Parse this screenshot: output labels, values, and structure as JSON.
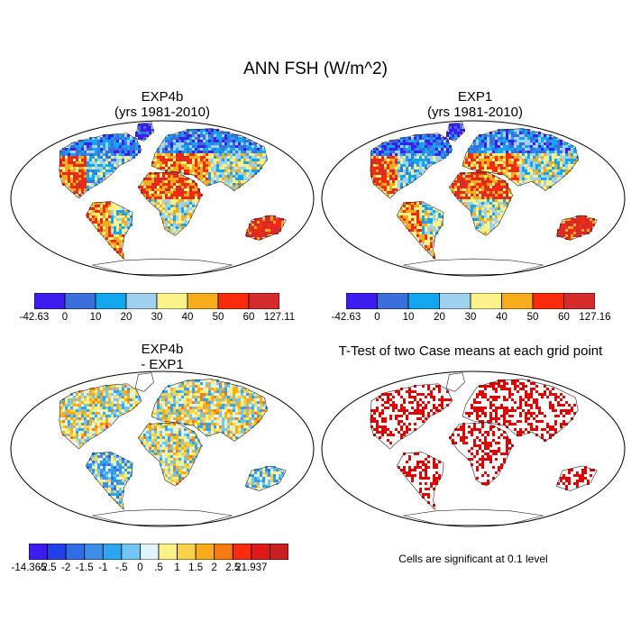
{
  "title": "ANN FSH (W/m^2)",
  "panels": {
    "exp4b": {
      "title": "EXP4b",
      "subtitle": "(yrs 1981-2010)"
    },
    "exp1": {
      "title": "EXP1",
      "subtitle": "(yrs 1981-2010)"
    },
    "diff": {
      "title": "EXP4b",
      "subtitle": "- EXP1"
    },
    "ttest": {
      "title": "T-Test of two Case means at each grid point",
      "note": "Cells are significant at 0.1 level"
    }
  },
  "colorbars": {
    "exp4b": {
      "labels": [
        "-42.63",
        "0",
        "10",
        "20",
        "30",
        "40",
        "50",
        "60",
        "127.11"
      ],
      "colors": [
        "#3d1cf0",
        "#3a6fdc",
        "#13a6ee",
        "#9fd0ec",
        "#fbf38a",
        "#f7ad1b",
        "#fa2a0c",
        "#d62b2b"
      ]
    },
    "exp1": {
      "labels": [
        "-42.63",
        "0",
        "10",
        "20",
        "30",
        "40",
        "50",
        "60",
        "127.16"
      ],
      "colors": [
        "#3d1cf0",
        "#3a6fdc",
        "#13a6ee",
        "#9fd0ec",
        "#fbf38a",
        "#f7ad1b",
        "#fa2a0c",
        "#d62b2b"
      ]
    },
    "diff": {
      "labels": [
        "-14.365",
        "-2.5",
        "-2",
        "-1.5",
        "-1",
        "-.5",
        "0",
        ".5",
        "1",
        "1.5",
        "2",
        "2.5",
        "21.937"
      ],
      "colors": [
        "#3d1cf0",
        "#2140ea",
        "#2f6ee6",
        "#3d8ee9",
        "#2ca6ee",
        "#72c6f4",
        "#dff3f8",
        "#fbf38a",
        "#fad24a",
        "#f7ad1b",
        "#f57b12",
        "#fa2a0c",
        "#e01818",
        "#c82020"
      ]
    }
  },
  "colors": {
    "land_cool": "#3a8ee8",
    "land_mid": "#fbf38a",
    "land_warm": "#f57b12",
    "land_hot": "#fa2a0c",
    "significant": "#e00000"
  }
}
